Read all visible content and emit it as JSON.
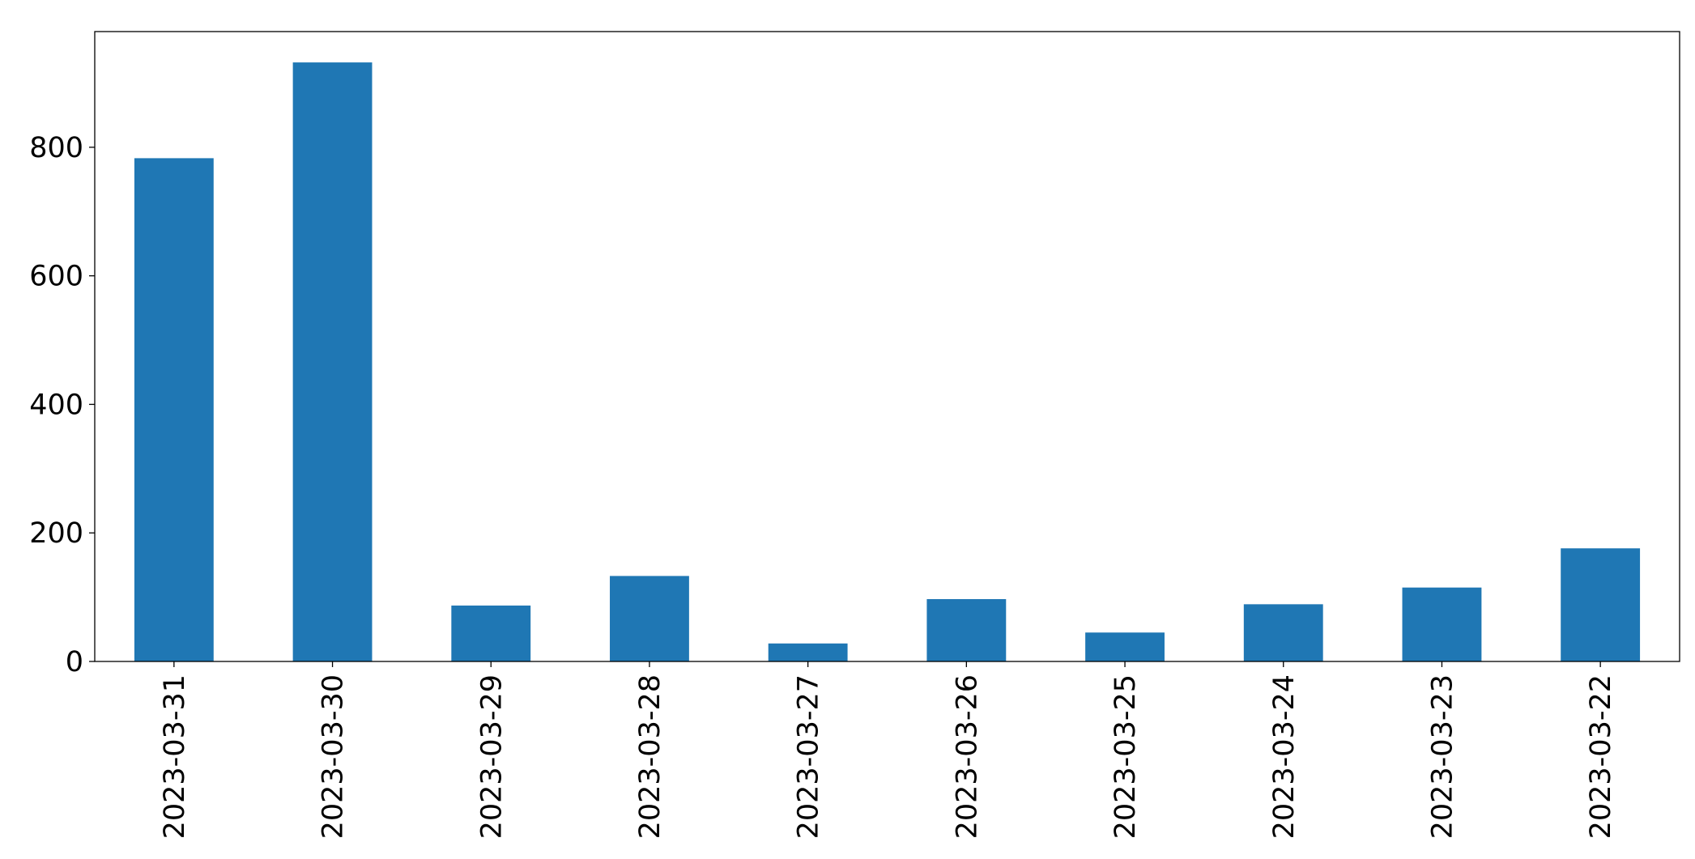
{
  "chart_data": {
    "type": "bar",
    "categories": [
      "2023-03-31",
      "2023-03-30",
      "2023-03-29",
      "2023-03-28",
      "2023-03-27",
      "2023-03-26",
      "2023-03-25",
      "2023-03-24",
      "2023-03-23",
      "2023-03-22"
    ],
    "values": [
      783,
      932,
      87,
      133,
      28,
      97,
      45,
      89,
      115,
      176
    ],
    "color": "#1f77b4",
    "ylim": [
      0,
      980
    ],
    "yticks": [
      0,
      200,
      400,
      600,
      800
    ],
    "grid": false
  }
}
